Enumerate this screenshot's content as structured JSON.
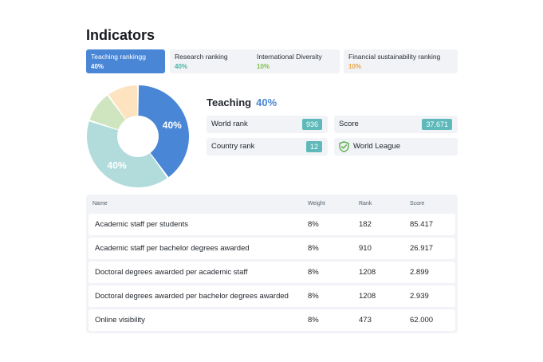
{
  "page": {
    "title": "Indicators"
  },
  "tabs": [
    {
      "label": "Teaching rankingg",
      "value": "40%",
      "value_color": "#ffffff",
      "active": true
    },
    {
      "label": "Research ranking",
      "value": "40%",
      "value_color": "#45b5a3",
      "active": false
    },
    {
      "label": "International Diversity",
      "value": "10%",
      "value_color": "#7bbf4a",
      "active": false
    },
    {
      "label": "Financial sustainability ranking",
      "value": "10%",
      "value_color": "#e8a64a",
      "active": false
    }
  ],
  "donut": {
    "segments": [
      {
        "name": "Teaching",
        "value": 40,
        "color": "#4a86d6",
        "label": "40%"
      },
      {
        "name": "Research",
        "value": 40,
        "color": "#b2dcdc",
        "label": "40%"
      },
      {
        "name": "International Diversity",
        "value": 10,
        "color": "#cfe5bf",
        "label": ""
      },
      {
        "name": "Financial sustainability",
        "value": 10,
        "color": "#fde3c0",
        "label": ""
      }
    ]
  },
  "detail": {
    "heading": "Teaching",
    "heading_value": "40%",
    "world_rank_label": "World rank",
    "world_rank_value": "936",
    "score_label": "Score",
    "score_value": "37.671",
    "country_rank_label": "Country rank",
    "country_rank_value": "12",
    "league_label": "World League",
    "league_icon": "shield-icon"
  },
  "table": {
    "headers": [
      "Name",
      "Weight",
      "Rank",
      "Score"
    ],
    "rows": [
      {
        "name": "Academic staff per students",
        "weight": "8%",
        "rank": "182",
        "score": "85.417"
      },
      {
        "name": "Academic staff per bachelor degrees awarded",
        "weight": "8%",
        "rank": "910",
        "score": "26.917"
      },
      {
        "name": "Doctoral degrees awarded per academic staff",
        "weight": "8%",
        "rank": "1208",
        "score": "2.899"
      },
      {
        "name": "Doctoral degrees awarded per bachelor degrees awarded",
        "weight": "8%",
        "rank": "1208",
        "score": "2.939"
      },
      {
        "name": "Online visibility",
        "weight": "8%",
        "rank": "473",
        "score": "62.000"
      }
    ]
  },
  "colors": {
    "accent": "#4a86d6",
    "badge": "#5fb9ba",
    "panel": "#f1f3f6",
    "league_icon": "#5ab04a"
  }
}
